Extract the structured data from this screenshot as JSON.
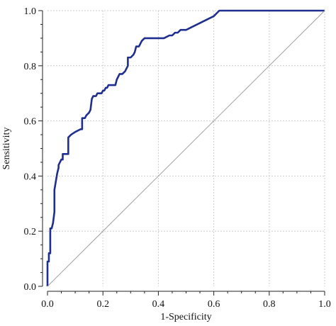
{
  "chart_data": {
    "type": "line",
    "xlabel": "1-Specificity",
    "ylabel": "Sensitivity",
    "xlim": [
      0,
      1
    ],
    "ylim": [
      0,
      1
    ],
    "x_ticks": [
      0,
      0.2,
      0.4,
      0.6,
      0.8,
      1
    ],
    "x_tick_labels": [
      "0.0",
      "0.2",
      "0.4",
      "0.6",
      "0.8",
      "1.0"
    ],
    "y_ticks": [
      0,
      0.2,
      0.4,
      0.6,
      0.8,
      1
    ],
    "y_tick_labels": [
      "0.0",
      "0.2",
      "0.4",
      "0.6",
      "0.8",
      "1.0"
    ],
    "grid": true,
    "series": [
      {
        "color": "#1f2f8f",
        "x": [
          0,
          0,
          0.005,
          0.005,
          0.01,
          0.01,
          0.015,
          0.02,
          0.025,
          0.025,
          0.03,
          0.035,
          0.04,
          0.04,
          0.045,
          0.05,
          0.055,
          0.055,
          0.06,
          0.075,
          0.075,
          0.085,
          0.1,
          0.12,
          0.125,
          0.125,
          0.135,
          0.14,
          0.15,
          0.155,
          0.16,
          0.165,
          0.17,
          0.175,
          0.18,
          0.185,
          0.19,
          0.195,
          0.2,
          0.205,
          0.21,
          0.215,
          0.22,
          0.24,
          0.245,
          0.25,
          0.255,
          0.26,
          0.27,
          0.28,
          0.29,
          0.29,
          0.3,
          0.31,
          0.315,
          0.32,
          0.33,
          0.335,
          0.34,
          0.35,
          0.36,
          0.365,
          0.37,
          0.38,
          0.4,
          0.42,
          0.44,
          0.45,
          0.46,
          0.47,
          0.48,
          0.5,
          0.52,
          0.54,
          0.56,
          0.58,
          0.6,
          0.61,
          0.62,
          0.63,
          0.64,
          0.7,
          1
        ],
        "y": [
          0,
          0.09,
          0.09,
          0.12,
          0.12,
          0.21,
          0.21,
          0.23,
          0.27,
          0.35,
          0.38,
          0.41,
          0.43,
          0.44,
          0.45,
          0.46,
          0.46,
          0.48,
          0.48,
          0.48,
          0.54,
          0.55,
          0.56,
          0.57,
          0.57,
          0.61,
          0.61,
          0.62,
          0.63,
          0.64,
          0.68,
          0.69,
          0.69,
          0.69,
          0.7,
          0.7,
          0.7,
          0.7,
          0.71,
          0.71,
          0.72,
          0.72,
          0.73,
          0.73,
          0.73,
          0.75,
          0.76,
          0.77,
          0.77,
          0.78,
          0.8,
          0.83,
          0.83,
          0.84,
          0.85,
          0.87,
          0.87,
          0.88,
          0.89,
          0.9,
          0.9,
          0.9,
          0.9,
          0.9,
          0.9,
          0.9,
          0.91,
          0.91,
          0.92,
          0.92,
          0.93,
          0.93,
          0.94,
          0.95,
          0.96,
          0.97,
          0.98,
          0.99,
          1,
          1,
          1,
          1,
          1
        ]
      },
      {
        "color": "#999999",
        "x": [
          0,
          1
        ],
        "y": [
          0,
          1
        ]
      }
    ]
  }
}
